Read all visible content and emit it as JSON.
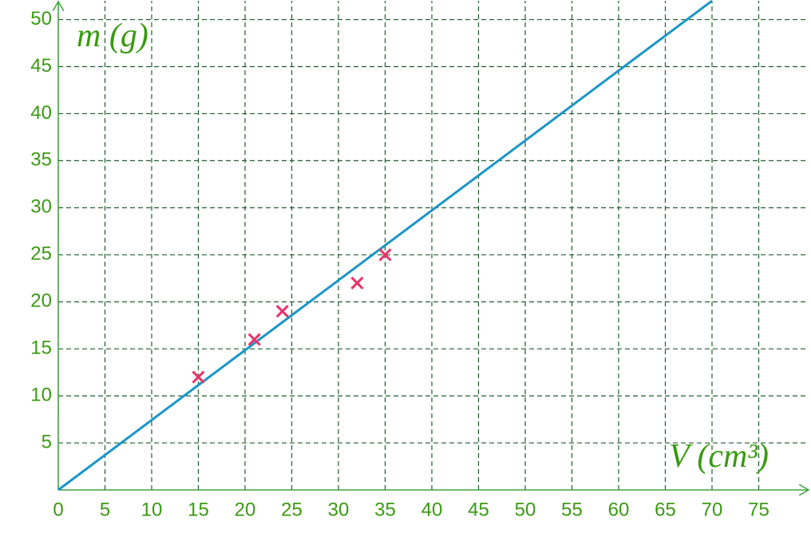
{
  "chart_data": {
    "type": "scatter",
    "x_label": "V (cm³)",
    "y_label": "m (g)",
    "xlim": [
      0,
      80
    ],
    "ylim": [
      0,
      52
    ],
    "xticks": [
      0,
      5,
      10,
      15,
      20,
      25,
      30,
      35,
      40,
      45,
      50,
      55,
      60,
      65,
      70,
      75
    ],
    "yticks": [
      5,
      10,
      15,
      20,
      25,
      30,
      35,
      40,
      45,
      50
    ],
    "grid": true,
    "series": [
      {
        "type": "line",
        "color": "#1a96c6",
        "x": [
          0,
          70
        ],
        "values": [
          0,
          52
        ]
      },
      {
        "type": "scatter",
        "color": "#e8336a",
        "x": [
          15,
          21,
          24,
          32,
          35
        ],
        "values": [
          12,
          16,
          19,
          22,
          25
        ]
      }
    ]
  }
}
